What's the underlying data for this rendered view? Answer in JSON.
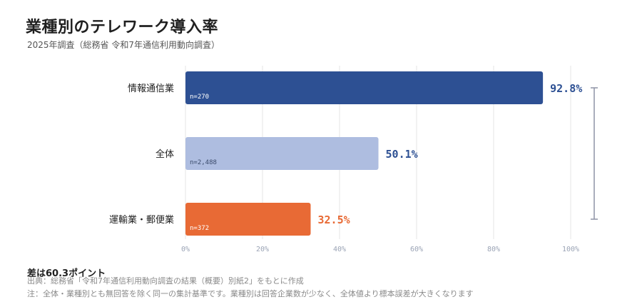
{
  "title": "業種別のテレワーク導入率",
  "subtitle": "2025年調査（総務省 令和7年通信利用動向調査）",
  "gap_note": "差は60.3ポイント",
  "source": "出典：総務省「令和7年通信利用動向調査の結果（概要）別紙2」をもとに作成",
  "note": "注：全体・業種別とも無回答を除く同一の集計基準です。業種別は回答企業数が少なく、全体値より標本誤差が大きくなります",
  "colors": {
    "info": "#2d5093",
    "overall": "#aebde0",
    "transport": "#e86a35",
    "grid": "#e6e6e6",
    "tick": "#9aa3b5",
    "bracket": "#8e93a6"
  },
  "chart_data": {
    "type": "bar",
    "orientation": "horizontal",
    "categories": [
      "情報通信業",
      "全体",
      "運輸業・郵便業"
    ],
    "values": [
      92.8,
      50.1,
      32.5
    ],
    "value_labels": [
      "92.8%",
      "50.1%",
      "32.5%"
    ],
    "sample_sizes": [
      "n=270",
      "n=2,488",
      "n=372"
    ],
    "xlim": [
      0,
      100
    ],
    "x_ticks": [
      "0%",
      "20%",
      "40%",
      "60%",
      "80%",
      "100%"
    ],
    "grid": true,
    "title": "業種別のテレワーク導入率",
    "xlabel": "",
    "ylabel": ""
  }
}
